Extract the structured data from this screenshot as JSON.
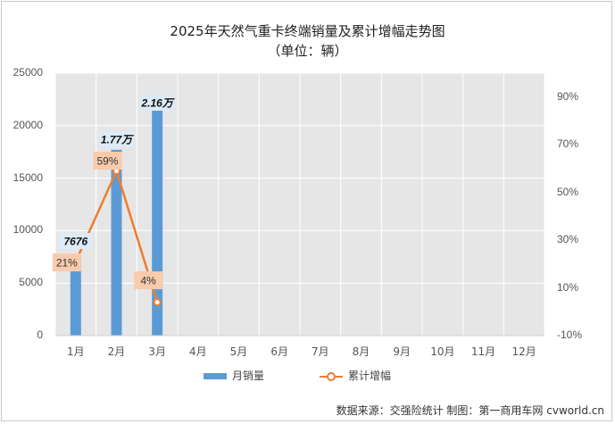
{
  "title_line1": "2025年天然气重卡终端销量及累计增幅走势图",
  "title_line2": "（单位：辆）",
  "source": "数据来源：交强险统计 制图：第一商用车网 cvworld.cn",
  "colors": {
    "bar": "#5b9bd5",
    "line": "#ed7d31",
    "plot_bg": "#e6e6e6",
    "grid": "#ffffff",
    "pct_label_bg": "#f8cbad",
    "bar_label_bg": "#ddebf7"
  },
  "chart_data": {
    "type": "bar",
    "title": "2025年天然气重卡终端销量及累计增幅走势图",
    "subtitle": "（单位：辆）",
    "categories": [
      "1月",
      "2月",
      "3月",
      "4月",
      "5月",
      "6月",
      "7月",
      "8月",
      "9月",
      "10月",
      "11月",
      "12月"
    ],
    "series": [
      {
        "name": "月销量",
        "type": "bar",
        "axis": "left",
        "values": [
          7676,
          17700,
          21600,
          null,
          null,
          null,
          null,
          null,
          null,
          null,
          null,
          null
        ],
        "labels": [
          "7676",
          "1.77万",
          "2.16万"
        ]
      },
      {
        "name": "累计增幅",
        "type": "line",
        "axis": "right",
        "values": [
          21,
          59,
          4,
          null,
          null,
          null,
          null,
          null,
          null,
          null,
          null,
          null
        ],
        "labels": [
          "21%",
          "59%",
          "4%"
        ]
      }
    ],
    "y_left": {
      "range": [
        0,
        25000
      ],
      "ticks": [
        "0",
        "5000",
        "10000",
        "15000",
        "20000",
        "25000"
      ]
    },
    "y_right": {
      "range": [
        -10,
        100
      ],
      "ticks": [
        "-10%",
        "10%",
        "30%",
        "50%",
        "70%",
        "90%"
      ]
    },
    "grid": true,
    "legend": "bottom"
  }
}
